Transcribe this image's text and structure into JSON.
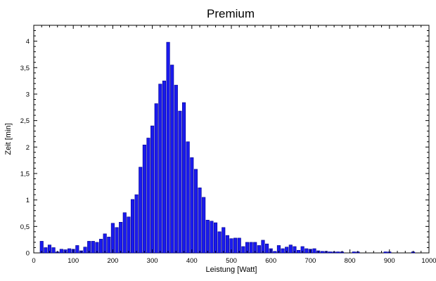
{
  "chart_data": {
    "type": "bar",
    "title": "Premium",
    "xlabel": "Leistung [Watt]",
    "ylabel": "Zeit [min]",
    "xlim": [
      0,
      1000
    ],
    "ylim": [
      0,
      4.3
    ],
    "xticks": [
      0,
      100,
      200,
      300,
      400,
      500,
      600,
      700,
      800,
      900,
      1000
    ],
    "xtick_labels": [
      "0",
      "100",
      "200",
      "300",
      "400",
      "500",
      "600",
      "700",
      "800",
      "900",
      "1000"
    ],
    "yticks": [
      0,
      0.5,
      1,
      1.5,
      2,
      2.5,
      3,
      3.5,
      4
    ],
    "ytick_labels": [
      "0",
      "0,5",
      "1",
      "1,5",
      "2",
      "2,5",
      "3",
      "3,5",
      "4"
    ],
    "bar_color": "#1a1aee",
    "bar_edge": "#00008b",
    "grid": false,
    "bin_width": 8,
    "x": [
      20,
      30,
      40,
      50,
      60,
      70,
      80,
      90,
      100,
      110,
      120,
      130,
      140,
      150,
      160,
      170,
      180,
      190,
      200,
      210,
      220,
      230,
      240,
      250,
      260,
      270,
      280,
      290,
      300,
      310,
      320,
      330,
      340,
      350,
      360,
      370,
      380,
      390,
      400,
      410,
      420,
      430,
      440,
      450,
      460,
      470,
      480,
      490,
      500,
      510,
      520,
      530,
      540,
      550,
      560,
      570,
      580,
      590,
      600,
      610,
      620,
      630,
      640,
      650,
      660,
      670,
      680,
      690,
      700,
      710,
      720,
      730,
      740,
      750,
      760,
      770,
      780,
      790,
      800,
      810,
      820,
      830,
      840,
      850,
      860,
      870,
      880,
      890,
      900,
      910,
      920,
      930,
      940,
      950,
      960
    ],
    "values": [
      0.22,
      0.1,
      0.15,
      0.1,
      0.02,
      0.07,
      0.06,
      0.08,
      0.07,
      0.14,
      0.04,
      0.11,
      0.22,
      0.22,
      0.2,
      0.26,
      0.36,
      0.3,
      0.56,
      0.48,
      0.58,
      0.76,
      0.68,
      1.01,
      1.1,
      1.62,
      2.04,
      2.17,
      2.4,
      2.82,
      3.19,
      3.25,
      3.98,
      3.55,
      3.17,
      2.68,
      2.84,
      2.1,
      1.8,
      1.58,
      1.23,
      1.05,
      0.62,
      0.6,
      0.57,
      0.4,
      0.48,
      0.33,
      0.27,
      0.28,
      0.28,
      0.12,
      0.2,
      0.2,
      0.2,
      0.14,
      0.24,
      0.17,
      0.08,
      0.03,
      0.14,
      0.08,
      0.11,
      0.15,
      0.12,
      0.05,
      0.12,
      0.08,
      0.07,
      0.08,
      0.04,
      0.03,
      0.03,
      0.02,
      0.02,
      0.02,
      0.02,
      0.0,
      0.0,
      0.02,
      0.02,
      0.0,
      0.0,
      0.0,
      0.0,
      0.0,
      0.0,
      0.02,
      0.02,
      0.0,
      0.0,
      0.0,
      0.0,
      0.0,
      0.02
    ]
  }
}
